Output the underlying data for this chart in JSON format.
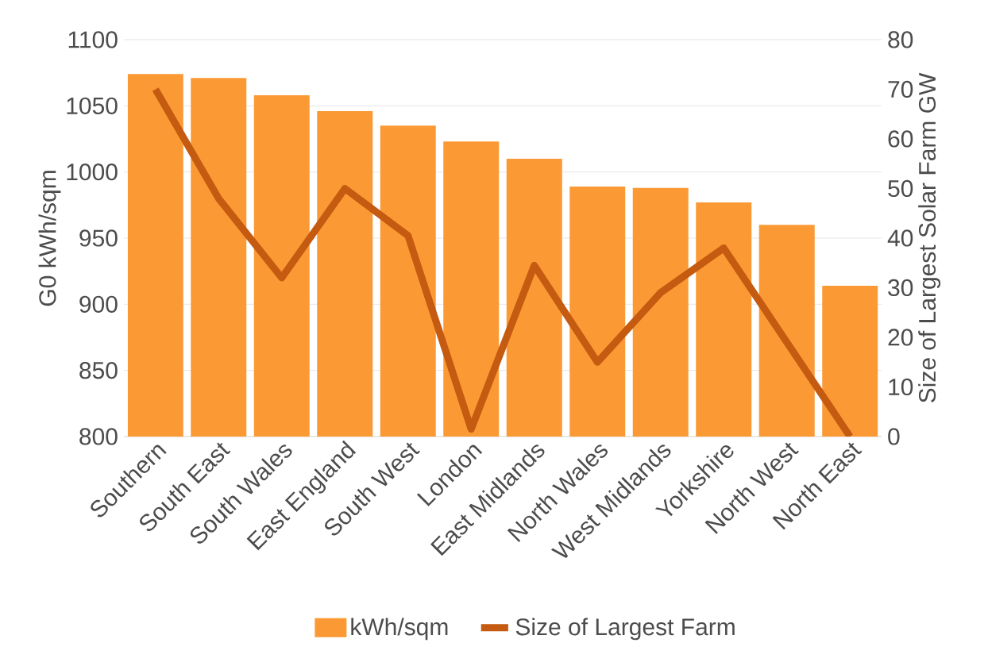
{
  "chart_data": {
    "type": "bar",
    "categories": [
      "Southern",
      "South East",
      "South Wales",
      "East England",
      "South West",
      "London",
      "East Midlands",
      "North Wales",
      "West Midlands",
      "Yorkshire",
      "North West",
      "North East"
    ],
    "series": [
      {
        "name": "kWh/sqm",
        "color": "#fb9a35",
        "values": [
          1074,
          1071,
          1058,
          1046,
          1035,
          1023,
          1010,
          989,
          988,
          977,
          960,
          914
        ]
      },
      {
        "name": "Size of Largest Farm",
        "type": "line",
        "axis": "y2",
        "color": "#c55a11",
        "values": [
          70,
          48,
          32,
          50,
          40.5,
          1.5,
          34.5,
          15,
          29,
          38,
          19,
          0
        ]
      }
    ],
    "ylabel": "G0 kWh/sqm",
    "y2label": "Size of Largest Solar Farm GW",
    "ylim": [
      800,
      1100
    ],
    "yticks": [
      800,
      850,
      900,
      950,
      1000,
      1050,
      1100
    ],
    "y2lim": [
      0,
      80
    ],
    "y2ticks": [
      0,
      10,
      20,
      30,
      40,
      50,
      60,
      70,
      80
    ],
    "grid": "y",
    "legend": "bottom"
  }
}
